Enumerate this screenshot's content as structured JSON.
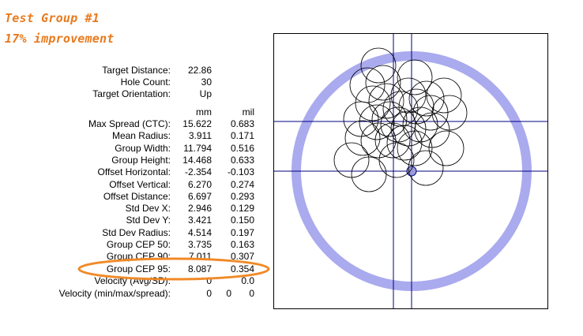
{
  "annotations": {
    "title": "Test Group #1",
    "subtitle": "17% improvement",
    "color": "#e87a1e"
  },
  "info": [
    {
      "label": "Target Distance:",
      "value": "22.86"
    },
    {
      "label": "Hole Count:",
      "value": "30"
    },
    {
      "label": "Target Orientation:",
      "value": "Up"
    }
  ],
  "columns": {
    "mm": "mm",
    "mil": "mil"
  },
  "stats": [
    {
      "label": "Max Spread (CTC):",
      "mm": "15.622",
      "mil": "0.683"
    },
    {
      "label": "Mean Radius:",
      "mm": "3.911",
      "mil": "0.171"
    },
    {
      "label": "Group Width:",
      "mm": "11.794",
      "mil": "0.516"
    },
    {
      "label": "Group Height:",
      "mm": "14.468",
      "mil": "0.633"
    },
    {
      "label": "Offset Horizontal:",
      "mm": "-2.354",
      "mil": "-0.103"
    },
    {
      "label": "Offset Vertical:",
      "mm": "6.270",
      "mil": "0.274"
    },
    {
      "label": "Offset Distance:",
      "mm": "6.697",
      "mil": "0.293"
    },
    {
      "label": "Std Dev X:",
      "mm": "2.946",
      "mil": "0.129"
    },
    {
      "label": "Std Dev Y:",
      "mm": "3.421",
      "mil": "0.150"
    },
    {
      "label": "Std Dev Radius:",
      "mm": "4.514",
      "mil": "0.197"
    },
    {
      "label": "Group CEP 50:",
      "mm": "3.735",
      "mil": "0.163"
    },
    {
      "label": "Group CEP 90:",
      "mm": "7.011",
      "mil": "0.307"
    },
    {
      "label": "Group CEP 95:",
      "mm": "8.087",
      "mil": "0.354"
    },
    {
      "label": "Velocity (Avg/SD):",
      "mm": "0",
      "mil": "0.0"
    }
  ],
  "velocity_spread": {
    "label": "Velocity (min/max/spread):",
    "min": "0",
    "max": "0",
    "spread": "0"
  },
  "highlighted_stat": "Group CEP 95:",
  "colors": {
    "ring": "#aaaaee",
    "lines": "#000080",
    "bull": "#9999dd",
    "holes": "#000000"
  }
}
